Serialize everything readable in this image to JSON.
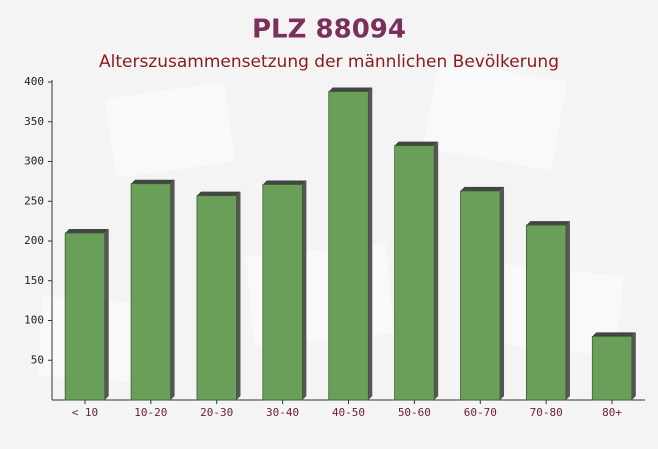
{
  "chart_data": {
    "type": "bar",
    "title": "PLZ 88094",
    "subtitle": "Alterszusammensetzung der männlichen Bevölkerung",
    "categories": [
      "< 10",
      "10-20",
      "20-30",
      "30-40",
      "40-50",
      "50-60",
      "60-70",
      "70-80",
      "80+"
    ],
    "values": [
      210,
      272,
      257,
      271,
      388,
      320,
      263,
      220,
      80
    ],
    "color": "#6a9f5a",
    "ylim": [
      0,
      400
    ],
    "yticks": [
      50,
      100,
      150,
      200,
      250,
      300,
      350,
      400
    ],
    "grid": false
  }
}
